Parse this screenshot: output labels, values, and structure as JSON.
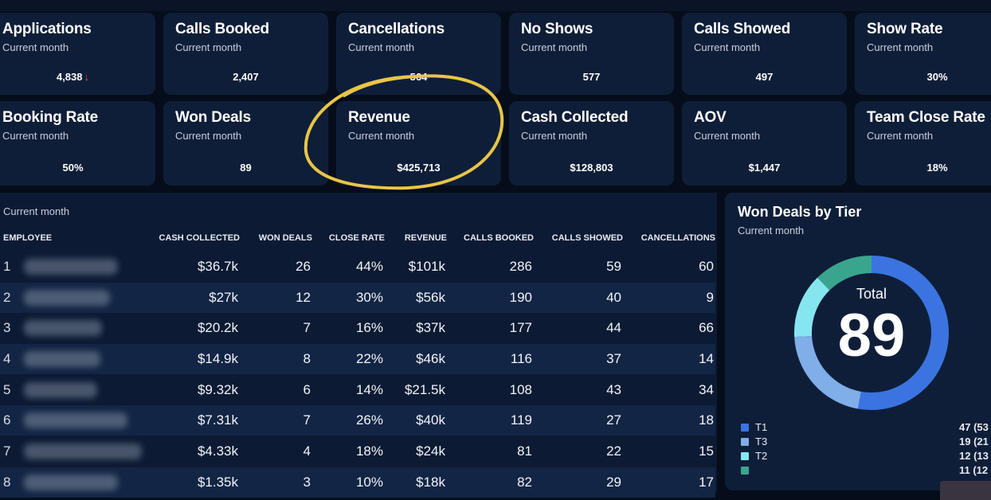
{
  "kpis": [
    {
      "title": "Applications",
      "subtitle": "Current month",
      "value": "4,838",
      "trend": "↓"
    },
    {
      "title": "Calls Booked",
      "subtitle": "Current month",
      "value": "2,407"
    },
    {
      "title": "Cancellations",
      "subtitle": "Current month",
      "value": "564"
    },
    {
      "title": "No Shows",
      "subtitle": "Current month",
      "value": "577"
    },
    {
      "title": "Calls Showed",
      "subtitle": "Current month",
      "value": "497"
    },
    {
      "title": "Show Rate",
      "subtitle": "Current month",
      "value": "30%"
    },
    {
      "title": "Booking Rate",
      "subtitle": "Current month",
      "value": "50%"
    },
    {
      "title": "Won Deals",
      "subtitle": "Current month",
      "value": "89"
    },
    {
      "title": "Revenue",
      "subtitle": "Current month",
      "value": "$425,713"
    },
    {
      "title": "Cash Collected",
      "subtitle": "Current month",
      "value": "$128,803"
    },
    {
      "title": "AOV",
      "subtitle": "Current month",
      "value": "$1,447"
    },
    {
      "title": "Team Close Rate",
      "subtitle": "Current month",
      "value": "18%"
    }
  ],
  "table": {
    "subtitle": "Current month",
    "headers": [
      "EMPLOYEE",
      "CASH COLLECTED",
      "WON DEALS",
      "CLOSE RATE",
      "REVENUE",
      "CALLS BOOKED",
      "CALLS SHOWED",
      "CANCELLATIONS"
    ],
    "rows": [
      [
        "1",
        "$36.7k",
        "26",
        "44%",
        "$101k",
        "286",
        "59",
        "60"
      ],
      [
        "2",
        "$27k",
        "12",
        "30%",
        "$56k",
        "190",
        "40",
        "9"
      ],
      [
        "3",
        "$20.2k",
        "7",
        "16%",
        "$37k",
        "177",
        "44",
        "66"
      ],
      [
        "4",
        "$14.9k",
        "8",
        "22%",
        "$46k",
        "116",
        "37",
        "14"
      ],
      [
        "5",
        "$9.32k",
        "6",
        "14%",
        "$21.5k",
        "108",
        "43",
        "34"
      ],
      [
        "6",
        "$7.31k",
        "7",
        "26%",
        "$40k",
        "119",
        "27",
        "18"
      ],
      [
        "7",
        "$4.33k",
        "4",
        "18%",
        "$24k",
        "81",
        "22",
        "15"
      ],
      [
        "8",
        "$1.35k",
        "3",
        "10%",
        "$18k",
        "82",
        "29",
        "17"
      ]
    ]
  },
  "donut": {
    "title": "Won Deals by Tier",
    "subtitle": "Current month",
    "center_label": "Total",
    "center_value": "89",
    "legend": [
      {
        "name": "T1",
        "value": "47 (53",
        "color": "#3b74e0",
        "count": 47
      },
      {
        "name": "T3",
        "value": "19 (21",
        "color": "#7faee9",
        "count": 19
      },
      {
        "name": "T2",
        "value": "12 (13",
        "color": "#86e6ef",
        "count": 12
      },
      {
        "name": "",
        "value": "11 (12",
        "color": "#3aa58f",
        "count": 11
      }
    ]
  },
  "colors": {
    "accent_circle": "#e8c547",
    "negative": "#e5484d"
  }
}
